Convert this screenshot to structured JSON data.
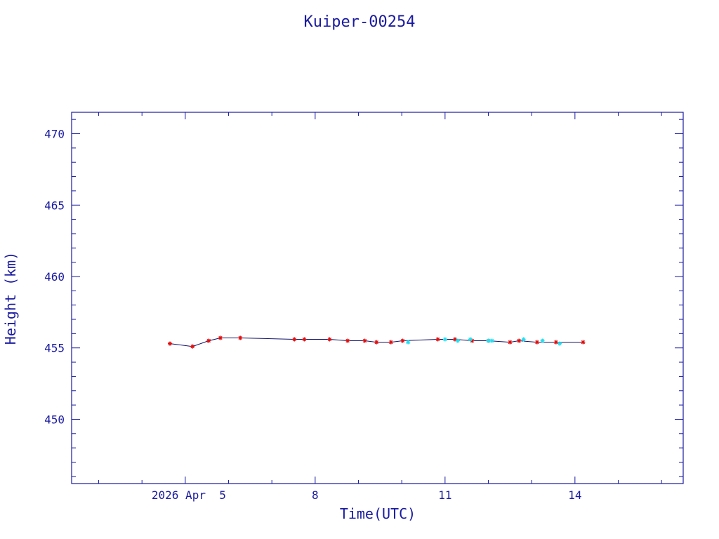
{
  "chart_data": {
    "type": "scatter",
    "title": "Kuiper-00254",
    "xlabel": "Time(UTC)",
    "ylabel": "Height (km)",
    "x_tick_labels": [
      {
        "date": "2026-04-05",
        "label": "2026 Apr  5"
      },
      {
        "date": "2026-04-08",
        "label": "8"
      },
      {
        "date": "2026-04-11",
        "label": "11"
      },
      {
        "date": "2026-04-14",
        "label": "14"
      }
    ],
    "y_ticks": [
      450,
      455,
      460,
      465,
      470
    ],
    "xlim": [
      "2026-04-02T09:00",
      "2026-04-16T12:00"
    ],
    "ylim": [
      445.5,
      471.5
    ],
    "grid": false,
    "colors": {
      "axis": "#1a1aa0",
      "line": "#10106a",
      "red_marker": "#e01010",
      "cyan_marker": "#20e0f0"
    },
    "series": [
      {
        "marker_color": "red",
        "connected": true,
        "points": [
          {
            "x": "2026-04-04T15:30",
            "y": 455.3
          },
          {
            "x": "2026-04-05T04:00",
            "y": 455.1
          },
          {
            "x": "2026-04-05T13:00",
            "y": 455.5
          },
          {
            "x": "2026-04-05T19:30",
            "y": 455.7
          },
          {
            "x": "2026-04-06T06:30",
            "y": 455.7
          },
          {
            "x": "2026-04-07T12:30",
            "y": 455.6
          },
          {
            "x": "2026-04-07T18:00",
            "y": 455.6
          },
          {
            "x": "2026-04-08T08:00",
            "y": 455.6
          },
          {
            "x": "2026-04-08T18:00",
            "y": 455.5
          },
          {
            "x": "2026-04-09T03:30",
            "y": 455.5
          },
          {
            "x": "2026-04-09T10:00",
            "y": 455.4
          },
          {
            "x": "2026-04-09T18:00",
            "y": 455.4
          },
          {
            "x": "2026-04-10T00:30",
            "y": 455.5
          },
          {
            "x": "2026-04-10T20:00",
            "y": 455.6
          },
          {
            "x": "2026-04-11T05:30",
            "y": 455.6
          },
          {
            "x": "2026-04-11T15:00",
            "y": 455.5
          },
          {
            "x": "2026-04-12T00:00",
            "y": 455.5
          },
          {
            "x": "2026-04-12T12:00",
            "y": 455.4
          },
          {
            "x": "2026-04-12T17:00",
            "y": 455.5
          },
          {
            "x": "2026-04-13T03:00",
            "y": 455.4
          },
          {
            "x": "2026-04-13T13:30",
            "y": 455.4
          },
          {
            "x": "2026-04-14T04:30",
            "y": 455.4
          }
        ]
      },
      {
        "marker_color": "cyan",
        "connected": false,
        "points": [
          {
            "x": "2026-04-10T03:30",
            "y": 455.4
          },
          {
            "x": "2026-04-11T00:00",
            "y": 455.6
          },
          {
            "x": "2026-04-11T07:00",
            "y": 455.5
          },
          {
            "x": "2026-04-11T14:00",
            "y": 455.6
          },
          {
            "x": "2026-04-12T00:00",
            "y": 455.5
          },
          {
            "x": "2026-04-12T02:00",
            "y": 455.5
          },
          {
            "x": "2026-04-12T19:30",
            "y": 455.6
          },
          {
            "x": "2026-04-13T06:00",
            "y": 455.5
          },
          {
            "x": "2026-04-13T15:30",
            "y": 455.3
          }
        ]
      }
    ]
  }
}
